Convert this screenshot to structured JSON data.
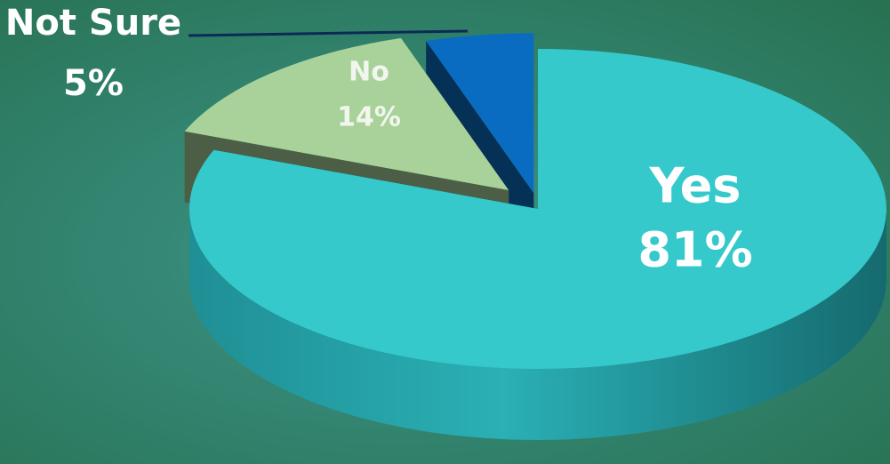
{
  "chart_data": {
    "type": "pie",
    "categories": [
      "Yes",
      "No",
      "Not Sure"
    ],
    "values": [
      81,
      14,
      5
    ],
    "value_labels": [
      "81%",
      "14%",
      "5%"
    ],
    "colors": [
      "#35c9cc",
      "#a9d29b",
      "#0a6cc0"
    ]
  }
}
